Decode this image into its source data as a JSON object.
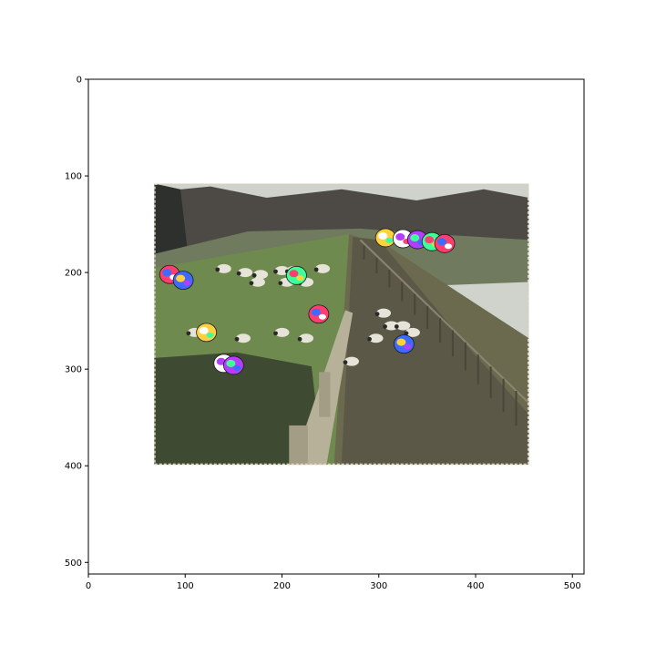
{
  "figure": {
    "x_ticks": [
      "0",
      "100",
      "200",
      "300",
      "400",
      "500"
    ],
    "y_ticks": [
      "0",
      "100",
      "200",
      "300",
      "400",
      "500"
    ]
  },
  "image": {
    "extent": [
      0,
      512,
      512,
      0
    ],
    "photo_extent": {
      "x": [
        68,
        455
      ],
      "y": [
        108,
        399
      ]
    },
    "scene": {
      "sky": "#cfd3cc",
      "trees": "#4d4a45",
      "hills": "#6f7a5e",
      "field": "#6f8a4e",
      "grass_dark": "#3f4a33",
      "path": "#5c5848",
      "fence": "#b7b19a",
      "sheep": "#e6e3d8"
    },
    "sheep_positions": [
      [
        140,
        196
      ],
      [
        162,
        200
      ],
      [
        178,
        202
      ],
      [
        200,
        198
      ],
      [
        212,
        198
      ],
      [
        242,
        196
      ],
      [
        175,
        210
      ],
      [
        205,
        210
      ],
      [
        225,
        210
      ],
      [
        110,
        262
      ],
      [
        160,
        268
      ],
      [
        200,
        262
      ],
      [
        225,
        268
      ],
      [
        297,
        268
      ],
      [
        305,
        242
      ],
      [
        313,
        255
      ],
      [
        325,
        255
      ],
      [
        335,
        262
      ],
      [
        272,
        292
      ]
    ],
    "artifact_patches": [
      [
        84,
        202
      ],
      [
        98,
        208
      ],
      [
        122,
        262
      ],
      [
        140,
        294
      ],
      [
        150,
        296
      ],
      [
        215,
        203
      ],
      [
        238,
        243
      ],
      [
        326,
        274
      ],
      [
        307,
        164
      ],
      [
        325,
        165
      ],
      [
        340,
        166
      ],
      [
        355,
        168
      ],
      [
        368,
        170
      ]
    ]
  }
}
